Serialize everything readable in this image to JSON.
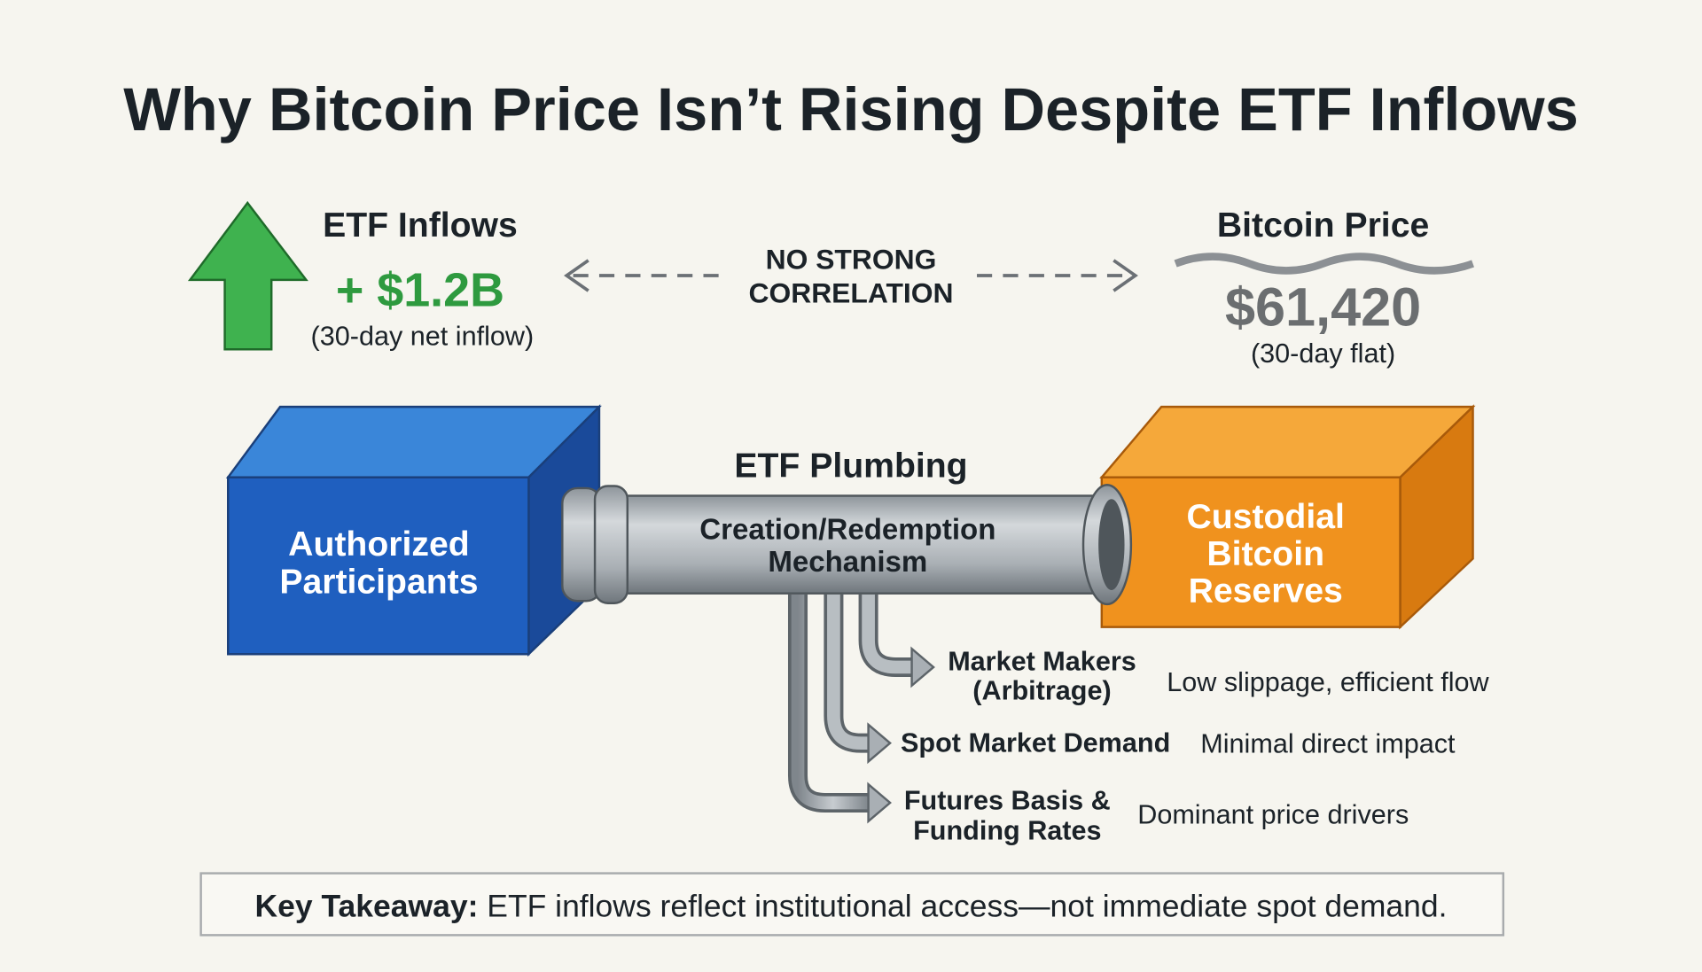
{
  "title": "Why Bitcoin Price Isn’t Rising Despite ETF Inflows",
  "inflows": {
    "label": "ETF Inflows",
    "value": "+ $1.2B",
    "note": "(30-day net inflow)",
    "icon": "green-up-arrow-icon"
  },
  "correlation": {
    "line1": "NO STRONG",
    "line2": "CORRELATION"
  },
  "price": {
    "label": "Bitcoin Price",
    "value": "$61,420",
    "note": "(30-day flat)",
    "icon": "flat-wave-icon"
  },
  "boxes": {
    "left": {
      "line1": "Authorized",
      "line2": "Participants"
    },
    "right": {
      "line1": "Custodial",
      "line2": "Bitcoin",
      "line3": "Reserves"
    }
  },
  "pipe": {
    "title": "ETF Plumbing",
    "line1": "Creation/Redemption",
    "line2": "Mechanism"
  },
  "branches": [
    {
      "line1": "Market Makers",
      "line2": "(Arbitrage)",
      "effect": "Low slippage, efficient flow"
    },
    {
      "line1": "Spot Market Demand",
      "effect": "Minimal direct impact"
    },
    {
      "line1": "Futures Basis &",
      "line2": "Funding Rates",
      "effect": "Dominant price drivers"
    }
  ],
  "takeaway": {
    "label": "Key Takeaway:",
    "text": " ETF inflows reflect institutional access—not immediate spot demand."
  },
  "colors": {
    "background": "#f6f5ef",
    "green": "#2e9a3f",
    "blue": "#1f5fbf",
    "orange": "#f0921e",
    "gray": "#6b6e70",
    "text": "#1b2228"
  }
}
